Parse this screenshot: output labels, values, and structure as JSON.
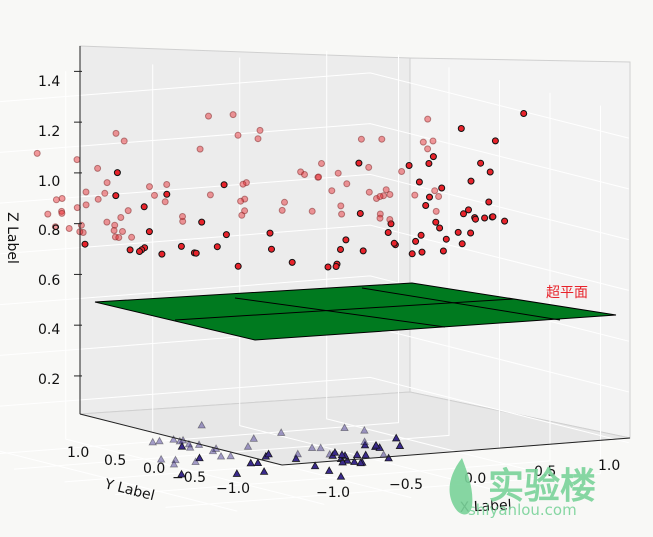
{
  "chart_data": {
    "type": "scatter",
    "projection": "3d",
    "xlabel": "X Label",
    "ylabel": "Y Label",
    "zlabel": "Z Label",
    "x_ticks": [
      "−1.0",
      "−0.5",
      "0.0",
      "0.5",
      "1.0"
    ],
    "y_ticks": [
      "1.0",
      "0.5",
      "0.0",
      "−0.5",
      "−1.0"
    ],
    "z_ticks": [
      "0.2",
      "0.4",
      "0.6",
      "0.8",
      "1.0",
      "1.2",
      "1.4"
    ],
    "zlim": [
      0.05,
      1.5
    ],
    "grid": true,
    "annotation": "超平面",
    "colors": {
      "red_points": "#e8232b",
      "blue_points": "#3a2a8c",
      "plane": "#007a1f",
      "annotation": "#e8232b"
    },
    "series": [
      {
        "marker": "circle",
        "z_range": [
          0.6,
          1.45
        ],
        "count": 150
      },
      {
        "marker": "triangle",
        "z_range": [
          0.05,
          0.2
        ],
        "count": 60
      }
    ]
  },
  "watermark": {
    "brand": "实验楼",
    "url": "shiyanlou.com"
  }
}
